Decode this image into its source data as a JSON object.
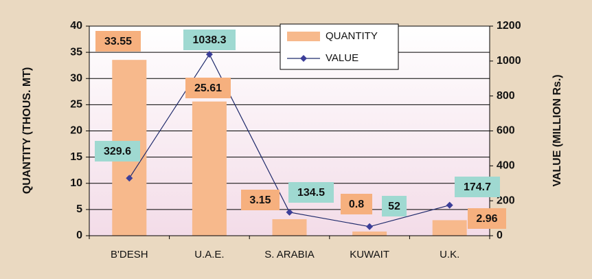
{
  "chart_data": {
    "type": "bar_line",
    "categories": [
      "B'DESH",
      "U.A.E.",
      "S. ARABIA",
      "KUWAIT",
      "U.K."
    ],
    "series": [
      {
        "name": "QUANTITY",
        "color": "#f7b98c",
        "values": [
          33.55,
          25.61,
          3.15,
          0.8,
          2.96
        ]
      },
      {
        "name": "VALUE",
        "color": "#1f2a6b",
        "values": [
          329.6,
          1038.3,
          134.5,
          52,
          174.7
        ],
        "axis": "y2"
      }
    ],
    "y_label": "QUANTITY (THOUS. MT)",
    "y2_label": "VALUE (MILLION Rs.)",
    "ylim": [
      0,
      40
    ],
    "yticks": [
      0,
      5,
      10,
      15,
      20,
      25,
      30,
      35,
      40
    ],
    "y2lim": [
      0,
      1200
    ],
    "y2ticks": [
      0,
      200,
      400,
      600,
      800,
      1000,
      1200
    ],
    "grid": true,
    "legend": "top"
  }
}
